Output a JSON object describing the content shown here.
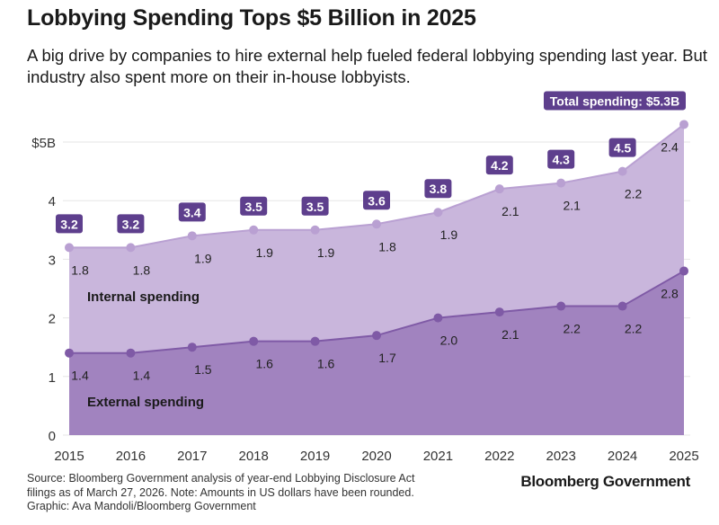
{
  "title": "Lobbying Spending Tops $5 Billion in 2025",
  "subtitle": "A big drive by companies to hire external help fueled federal lobbying spending last year. But industry also spent more on their in-house lobbyists.",
  "source": "Source: Bloomberg Government analysis of year-end Lobbying Disclosure Act filings as of March 27, 2026. Note: Amounts in US dollars have been rounded.",
  "credit": "Graphic: Ava Mandoli/Bloomberg Government",
  "brand": "Bloomberg Government",
  "colors": {
    "internal_area": "#c9b6dc",
    "external_area": "#a183bf",
    "internal_dot": "#b9a0d2",
    "external_dot": "#7f5aa6",
    "label_box": "#5e3f8d",
    "grid": "#e6e6e6"
  },
  "chart_data": {
    "type": "area",
    "title": "Lobbying Spending Tops $5 Billion in 2025",
    "xlabel": "",
    "ylabel": "",
    "x": [
      "2015",
      "2016",
      "2017",
      "2018",
      "2019",
      "2020",
      "2021",
      "2022",
      "2023",
      "2024",
      "2025"
    ],
    "yticks": [
      {
        "v": 0,
        "label": "0"
      },
      {
        "v": 1,
        "label": "1"
      },
      {
        "v": 2,
        "label": "2"
      },
      {
        "v": 3,
        "label": "3"
      },
      {
        "v": 4,
        "label": "4"
      },
      {
        "v": 5,
        "label": "$5B"
      }
    ],
    "ylim": [
      0,
      5.3
    ],
    "grid": true,
    "series": [
      {
        "name": "External spending",
        "values": [
          1.4,
          1.4,
          1.5,
          1.6,
          1.6,
          1.7,
          2.0,
          2.1,
          2.2,
          2.2,
          2.8
        ],
        "labels": [
          "1.4",
          "1.4",
          "1.5",
          "1.6",
          "1.6",
          "1.7",
          "2.0",
          "2.1",
          "2.2",
          "2.2",
          "2.8"
        ]
      },
      {
        "name": "Internal spending",
        "values": [
          1.8,
          1.8,
          1.9,
          1.9,
          1.9,
          1.8,
          1.9,
          2.1,
          2.1,
          2.2,
          2.4
        ],
        "labels": [
          "1.8",
          "1.8",
          "1.9",
          "1.9",
          "1.9",
          "1.8",
          "1.9",
          "2.1",
          "2.1",
          "2.2",
          "2.4"
        ]
      }
    ],
    "totals": [
      3.2,
      3.2,
      3.4,
      3.5,
      3.5,
      3.6,
      3.8,
      4.2,
      4.3,
      4.5,
      5.3
    ],
    "total_labels": [
      "3.2",
      "3.2",
      "3.4",
      "3.5",
      "3.5",
      "3.6",
      "3.8",
      "4.2",
      "4.3",
      "4.5",
      "Total spending: $5.3B"
    ],
    "stacked": true
  }
}
